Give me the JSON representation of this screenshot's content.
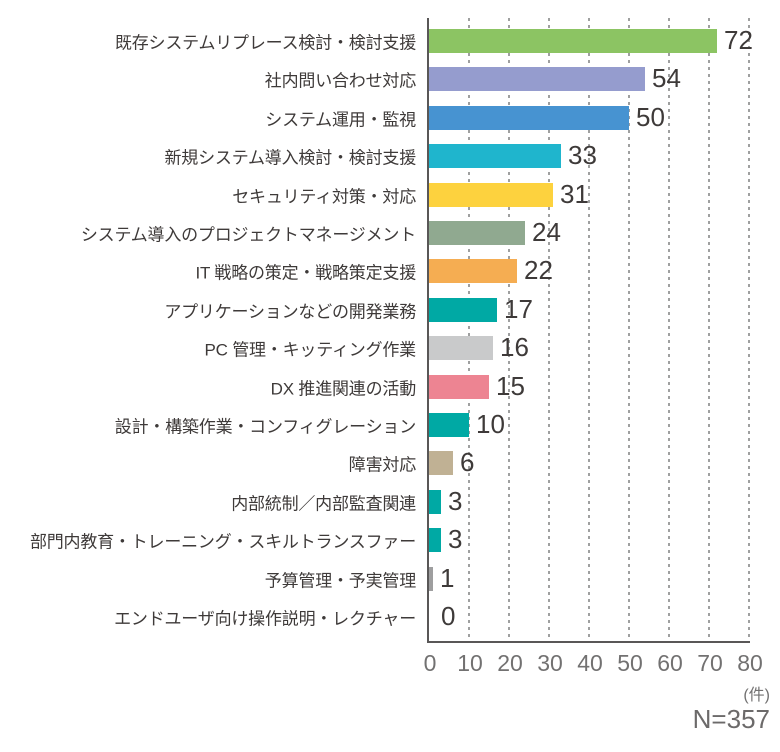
{
  "chart_data": {
    "type": "bar",
    "orientation": "horizontal",
    "title": "",
    "categories": [
      "既存システムリプレース検討・検討支援",
      "社内問い合わせ対応",
      "システム運用・監視",
      "新規システム導入検討・検討支援",
      "セキュリティ対策・対応",
      "システム導入のプロジェクトマネージメント",
      "IT 戦略の策定・戦略策定支援",
      "アプリケーションなどの開発業務",
      "PC 管理・キッティング作業",
      "DX 推進関連の活動",
      "設計・構築作業・コンフィグレーション",
      "障害対応",
      "内部統制／内部監査関連",
      "部門内教育・トレーニング・スキルトランスファー",
      "予算管理・予実管理",
      "エンドユーザ向け操作説明・レクチャー"
    ],
    "values": [
      72,
      54,
      50,
      33,
      31,
      24,
      22,
      17,
      16,
      15,
      10,
      6,
      3,
      3,
      1,
      0
    ],
    "bar_colors": [
      "#8cc463",
      "#959cce",
      "#4793d1",
      "#1fb5cd",
      "#fdd23e",
      "#90a990",
      "#f5ad52",
      "#00a9a4",
      "#c9cacb",
      "#ed8492",
      "#00a9a4",
      "#c0b194",
      "#00a9a4",
      "#00a9a4",
      "#9e9e9f",
      "#9e9e9f"
    ],
    "value_labels_shown": true,
    "xlim": [
      0,
      80
    ],
    "x_ticks": [
      "0",
      "10",
      "20",
      "30",
      "40",
      "50",
      "60",
      "70",
      "80"
    ],
    "x_unit_label": "(件)",
    "sample_size_label": "N=357",
    "grid": "dotted-vertical",
    "legend": "none"
  },
  "colors": {
    "background": "#ffffff",
    "axis_line": "#595757",
    "grid_dot": "#9fa0a0",
    "tick_text": "#727171",
    "unit_text": "#727171",
    "sample_text": "#6c6a6a",
    "category_text": "#3e3a39",
    "value_text": "#3e3a39"
  }
}
